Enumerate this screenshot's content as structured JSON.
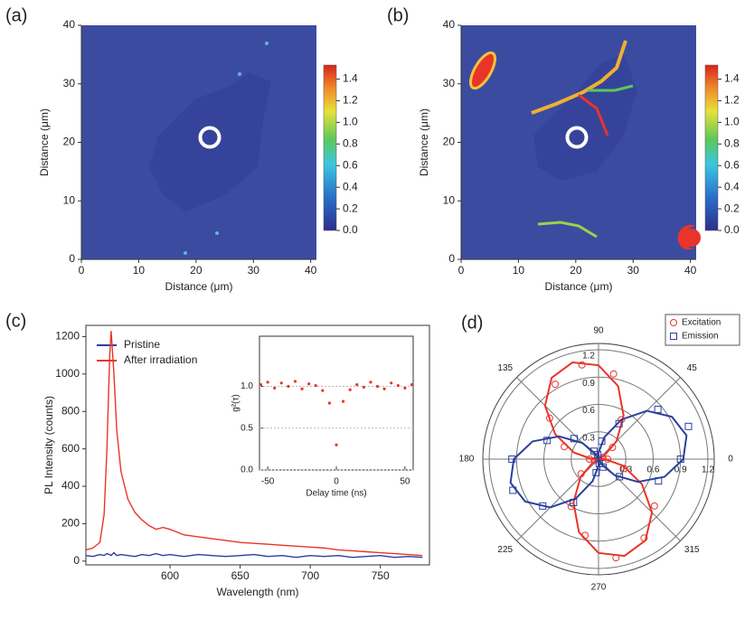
{
  "chart_data": [
    {
      "type": "heatmap",
      "panel_label": "(a)",
      "xlabel": "Distance (μm)",
      "ylabel": "Distance (μm)",
      "xlim": [
        0,
        41
      ],
      "xticks": [
        0,
        10,
        20,
        30,
        40
      ],
      "ylim": [
        0,
        40
      ],
      "yticks": [
        0,
        10,
        20,
        30,
        40
      ],
      "clim": [
        0,
        1.53
      ],
      "cticks": [
        {
          "value": 0,
          "label": "0.0"
        },
        0.2,
        0.4,
        0.6,
        0.8,
        {
          "value": 1,
          "label": "1.0"
        },
        1.2,
        1.4
      ]
    },
    {
      "type": "heatmap",
      "panel_label": "(b)",
      "xlabel": "Distance (μm)",
      "ylabel": "Distance (μm)",
      "xlim": [
        0,
        41
      ],
      "xticks": [
        0,
        10,
        20,
        30,
        40
      ],
      "ylim": [
        0,
        40
      ],
      "yticks": [
        0,
        10,
        20,
        30,
        40
      ],
      "clim": [
        0,
        1.53
      ],
      "cticks": [
        {
          "value": 0,
          "label": "0.0"
        },
        0.2,
        0.4,
        0.6,
        0.8,
        {
          "value": 1,
          "label": "1.0"
        },
        1.2,
        1.4
      ]
    },
    {
      "type": "line",
      "panel_label": "(c)",
      "xlabel": "Wavelength (nm)",
      "ylabel": "PL Intensity (counts)",
      "xlim": [
        540,
        785
      ],
      "xticks": [
        600,
        650,
        700,
        750
      ],
      "ylim": [
        -20,
        1260
      ],
      "yticks": [
        0,
        200,
        400,
        600,
        800,
        1000,
        1200
      ],
      "x": [
        540,
        545,
        550,
        553,
        555,
        557,
        558,
        560,
        562,
        565,
        570,
        575,
        580,
        585,
        590,
        595,
        600,
        605,
        610,
        620,
        630,
        640,
        650,
        660,
        670,
        680,
        690,
        700,
        710,
        720,
        730,
        740,
        750,
        760,
        770,
        780
      ],
      "series": [
        {
          "name": "Pristine",
          "color": "#2a3f9e",
          "values": [
            30,
            25,
            35,
            30,
            40,
            35,
            30,
            45,
            30,
            35,
            30,
            25,
            35,
            30,
            40,
            30,
            35,
            30,
            25,
            35,
            30,
            25,
            30,
            35,
            25,
            30,
            20,
            30,
            25,
            30,
            20,
            25,
            30,
            20,
            25,
            20
          ]
        },
        {
          "name": "After irradiation",
          "color": "#e8352a",
          "values": [
            60,
            70,
            100,
            250,
            600,
            1100,
            1230,
            1000,
            700,
            480,
            330,
            260,
            220,
            190,
            170,
            180,
            170,
            155,
            140,
            130,
            120,
            110,
            100,
            95,
            90,
            85,
            80,
            75,
            70,
            60,
            55,
            50,
            45,
            40,
            35,
            30
          ]
        }
      ]
    },
    {
      "type": "scatter",
      "xlabel": "Delay time (ns)",
      "ylabel": "g²(τ)",
      "grid": true,
      "color": "#e8352a",
      "xlim": [
        -56,
        56
      ],
      "xticks": [
        -50,
        0,
        50
      ],
      "ylim": [
        0,
        1.6
      ],
      "yticks": [
        {
          "value": 0,
          "label": "0.0"
        },
        0.5,
        {
          "value": 1,
          "label": "1.0"
        }
      ],
      "x": [
        -55,
        -50,
        -45,
        -40,
        -35,
        -30,
        -25,
        -20,
        -15,
        -10,
        -5,
        0,
        5,
        10,
        15,
        20,
        25,
        30,
        35,
        40,
        45,
        50,
        55
      ],
      "values": [
        1.02,
        1.05,
        0.98,
        1.04,
        1.0,
        1.06,
        0.97,
        1.03,
        1.01,
        0.95,
        0.8,
        0.3,
        0.82,
        0.96,
        1.02,
        0.99,
        1.05,
        1.0,
        0.97,
        1.04,
        1.01,
        0.98,
        1.02
      ]
    },
    {
      "type": "polar",
      "panel_label": "(d)",
      "rlim": [
        0,
        1.27
      ],
      "rticks": [
        0.3,
        0.6,
        0.9,
        1.2
      ],
      "theta_ticks": [
        0,
        45,
        90,
        135,
        180,
        225,
        270,
        315
      ],
      "series": [
        {
          "name": "Excitation",
          "color": "#e8352a",
          "marker": "circle",
          "theta": [
            0,
            20,
            40,
            60,
            80,
            100,
            120,
            140,
            160,
            180,
            200,
            220,
            240,
            260,
            280,
            300,
            320,
            340
          ],
          "values": [
            0.1,
            0.05,
            0.2,
            0.5,
            0.95,
            1.05,
            0.95,
            0.7,
            0.4,
            0.1,
            0.05,
            0.25,
            0.6,
            0.85,
            1.1,
            1.0,
            0.8,
            0.3
          ]
        },
        {
          "name": "Emission",
          "color": "#2a3f9e",
          "marker": "square",
          "theta": [
            0,
            20,
            40,
            60,
            80,
            100,
            120,
            140,
            160,
            180,
            200,
            220,
            240,
            260,
            280,
            300,
            320,
            340
          ],
          "values": [
            0.9,
            1.05,
            0.85,
            0.45,
            0.2,
            0.05,
            0.1,
            0.35,
            0.6,
            0.95,
            1.0,
            0.8,
            0.55,
            0.15,
            0.05,
            0.1,
            0.3,
            0.7
          ]
        }
      ],
      "fits": [
        {
          "color": "#e8352a",
          "theta": [
            0,
            15,
            30,
            45,
            60,
            75,
            90,
            105,
            120,
            135,
            150,
            165,
            180,
            195,
            210,
            225,
            240,
            255,
            270,
            285,
            300,
            315,
            330,
            345
          ],
          "values": [
            0.07,
            0,
            0.07,
            0.28,
            0.55,
            0.83,
            1.03,
            1.1,
            1.03,
            0.83,
            0.55,
            0.28,
            0.07,
            0,
            0.07,
            0.28,
            0.55,
            0.83,
            1.03,
            1.1,
            1.03,
            0.83,
            0.55,
            0.28
          ]
        },
        {
          "color": "#2a3f9e",
          "theta": [
            0,
            15,
            30,
            45,
            60,
            75,
            90,
            105,
            120,
            135,
            150,
            165,
            180,
            195,
            210,
            225,
            240,
            255,
            270,
            285,
            300,
            315,
            330,
            345
          ],
          "values": [
            0.93,
            1.0,
            0.93,
            0.75,
            0.5,
            0.25,
            0.07,
            0,
            0.07,
            0.25,
            0.5,
            0.75,
            0.93,
            1.0,
            0.93,
            0.75,
            0.5,
            0.25,
            0.07,
            0,
            0.07,
            0.25,
            0.5,
            0.75
          ]
        }
      ]
    }
  ]
}
